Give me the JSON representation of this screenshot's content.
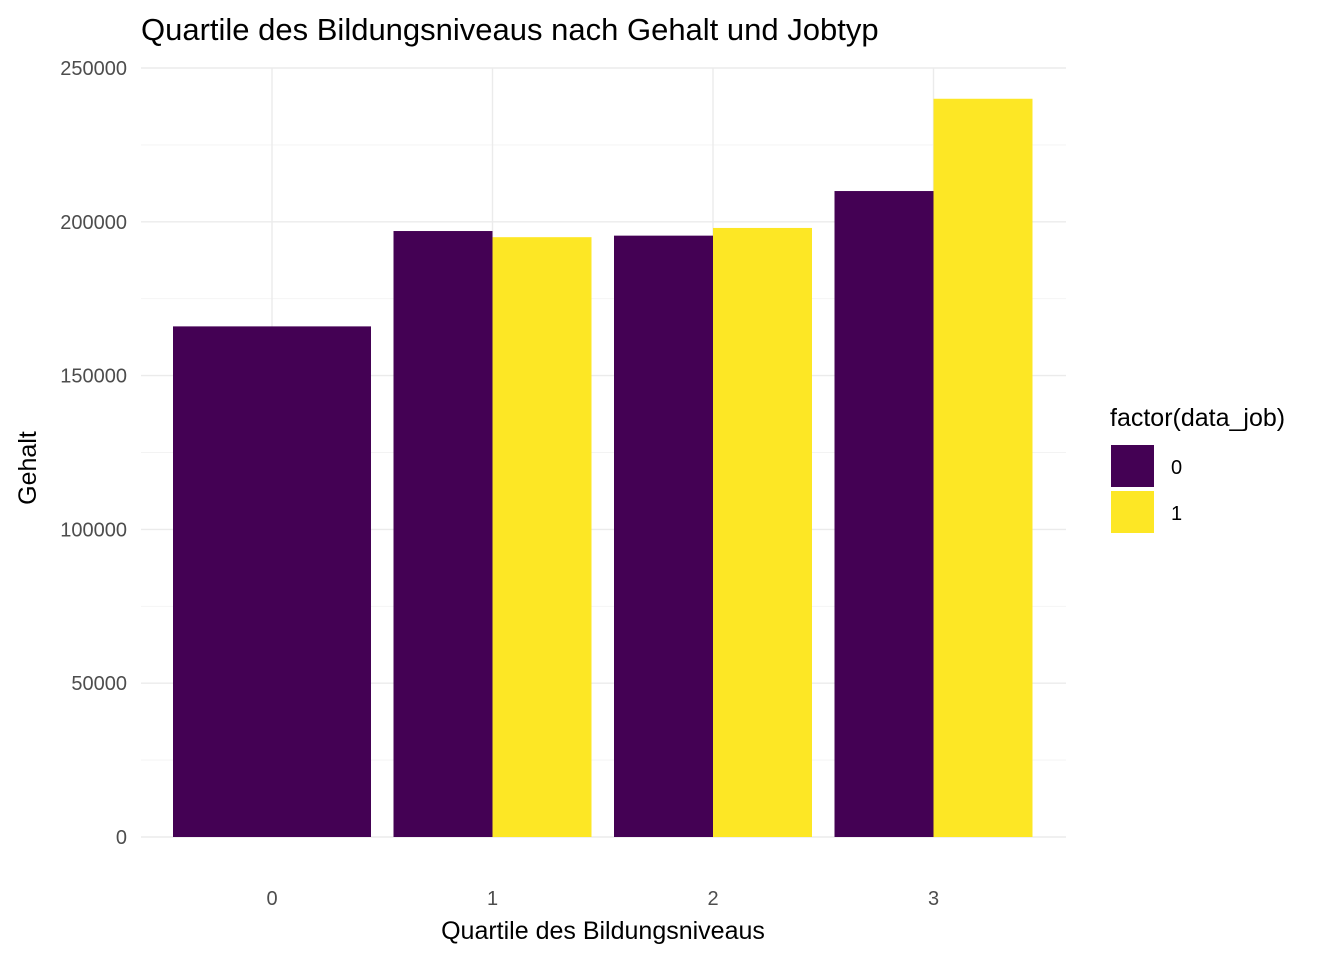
{
  "chart_data": {
    "type": "bar",
    "title": "Quartile des Bildungsniveaus nach Gehalt und Jobtyp",
    "xlabel": "Quartile des Bildungsniveaus",
    "ylabel": "Gehalt",
    "categories": [
      "0",
      "1",
      "2",
      "3"
    ],
    "ylim": [
      0,
      250000
    ],
    "yticks": [
      0,
      50000,
      100000,
      150000,
      200000,
      250000
    ],
    "ytick_labels": [
      "0",
      "50000",
      "100000",
      "150000",
      "200000",
      "250000"
    ],
    "grid": true,
    "legend": {
      "title": "factor(data_job)",
      "position": "right"
    },
    "series": [
      {
        "name": "0",
        "color": "#440154",
        "values": [
          166000,
          197000,
          195500,
          210000
        ]
      },
      {
        "name": "1",
        "color": "#FDE725",
        "values": [
          null,
          195000,
          198000,
          240000
        ]
      }
    ]
  }
}
